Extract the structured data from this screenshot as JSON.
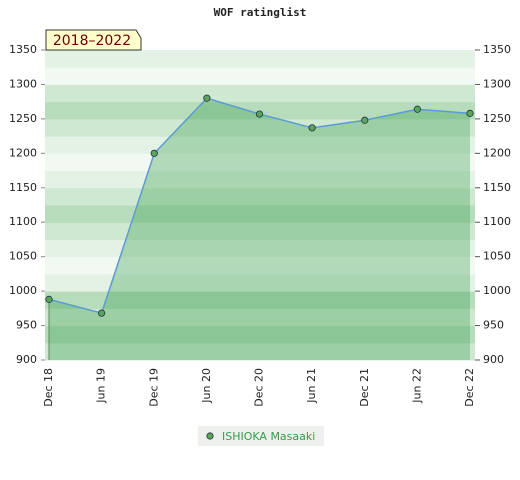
{
  "chart_data": {
    "type": "area",
    "title": "WOF ratinglist",
    "annotation": "2018–2022",
    "categories": [
      "Dec 18",
      "Jun 19",
      "Dec 19",
      "Jun 20",
      "Dec 20",
      "Jun 21",
      "Dec 21",
      "Jun 22",
      "Dec 22"
    ],
    "series": [
      {
        "name": "ISHIOKA Masaaki",
        "color": "#5aa55a",
        "values": [
          988,
          968,
          1200,
          1280,
          1257,
          1237,
          1248,
          1264,
          1258
        ]
      }
    ],
    "ylim": [
      900,
      1350
    ],
    "yticks": [
      900,
      950,
      1000,
      1050,
      1100,
      1150,
      1200,
      1250,
      1300,
      1350
    ],
    "y2lim": [
      900,
      1350
    ],
    "y2ticks": [
      900,
      950,
      1000,
      1050,
      1100,
      1150,
      1200,
      1250,
      1300,
      1350
    ],
    "grid": true
  }
}
